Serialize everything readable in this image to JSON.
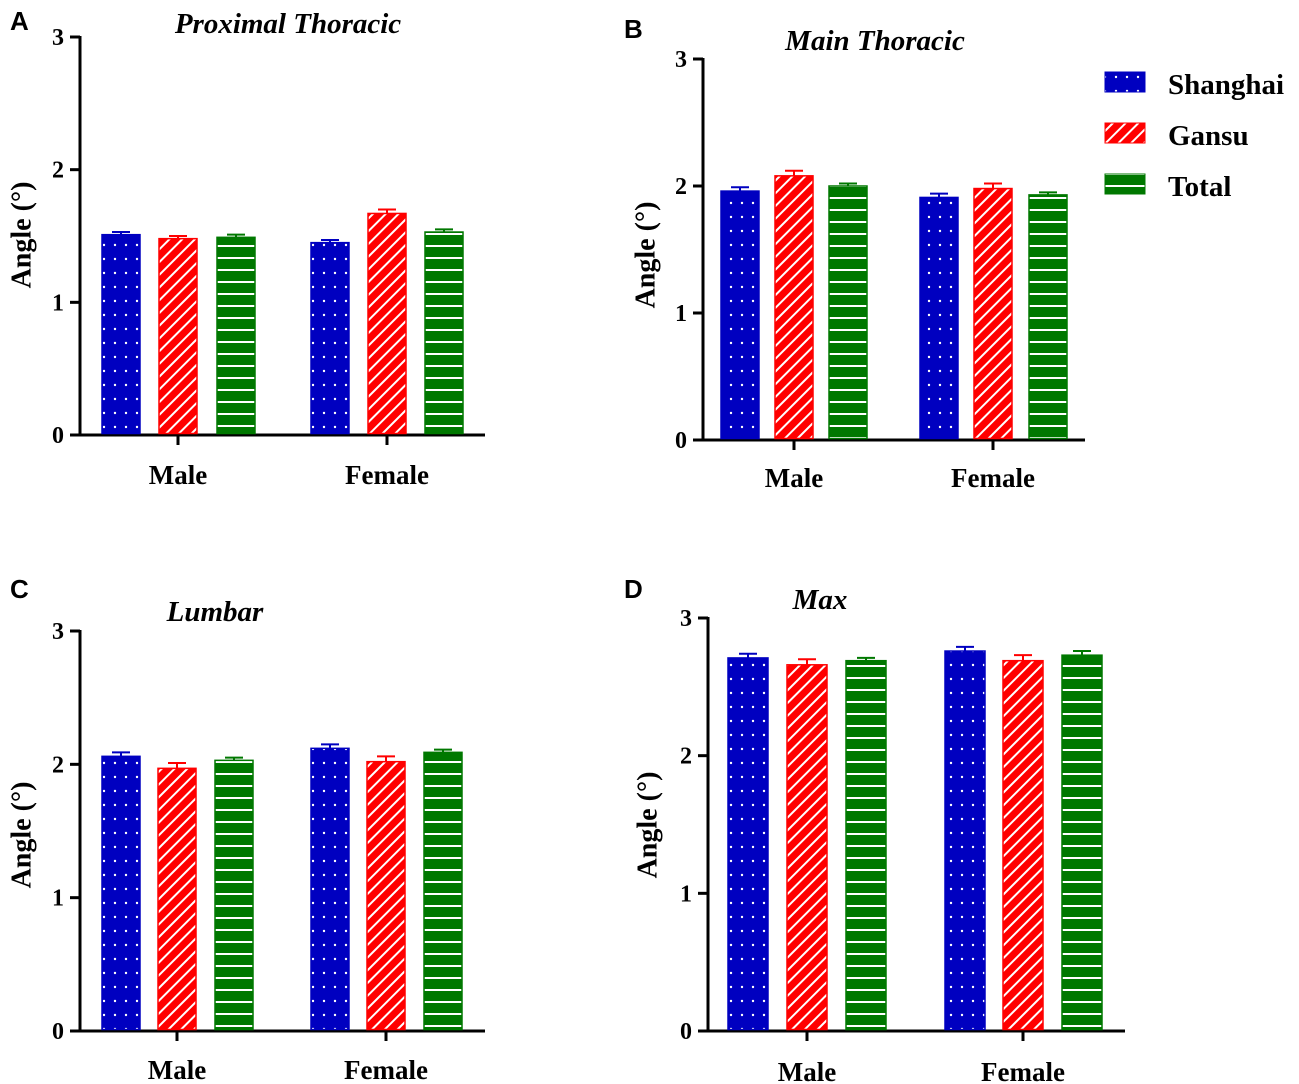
{
  "chart_data": [
    {
      "type": "bar",
      "panel": "A",
      "title": "Proximal Thoracic",
      "ylabel": "Angle (°)",
      "ylim": [
        0,
        3
      ],
      "yticks": [
        "0",
        "1",
        "2",
        "3"
      ],
      "categories": [
        "Male",
        "Female"
      ],
      "series": [
        {
          "name": "Shanghai",
          "values": [
            1.51,
            1.45
          ],
          "errors": [
            0.02,
            0.02
          ]
        },
        {
          "name": "Gansu",
          "values": [
            1.48,
            1.67
          ],
          "errors": [
            0.02,
            0.03
          ]
        },
        {
          "name": "Total",
          "values": [
            1.49,
            1.53
          ],
          "errors": [
            0.02,
            0.02
          ]
        }
      ]
    },
    {
      "type": "bar",
      "panel": "B",
      "title": "Main Thoracic",
      "ylabel": "Angle (°)",
      "ylim": [
        0,
        3
      ],
      "yticks": [
        "0",
        "1",
        "2",
        "3"
      ],
      "categories": [
        "Male",
        "Female"
      ],
      "series": [
        {
          "name": "Shanghai",
          "values": [
            1.96,
            1.91
          ],
          "errors": [
            0.03,
            0.03
          ]
        },
        {
          "name": "Gansu",
          "values": [
            2.08,
            1.98
          ],
          "errors": [
            0.04,
            0.04
          ]
        },
        {
          "name": "Total",
          "values": [
            2.0,
            1.93
          ],
          "errors": [
            0.02,
            0.02
          ]
        }
      ]
    },
    {
      "type": "bar",
      "panel": "C",
      "title": "Lumbar",
      "ylabel": "Angle (°)",
      "ylim": [
        0,
        3
      ],
      "yticks": [
        "0",
        "1",
        "2",
        "3"
      ],
      "categories": [
        "Male",
        "Female"
      ],
      "series": [
        {
          "name": "Shanghai",
          "values": [
            2.06,
            2.12
          ],
          "errors": [
            0.03,
            0.03
          ]
        },
        {
          "name": "Gansu",
          "values": [
            1.97,
            2.02
          ],
          "errors": [
            0.04,
            0.04
          ]
        },
        {
          "name": "Total",
          "values": [
            2.03,
            2.09
          ],
          "errors": [
            0.02,
            0.02
          ]
        }
      ]
    },
    {
      "type": "bar",
      "panel": "D",
      "title": "Max",
      "ylabel": "Angle (°)",
      "ylim": [
        0,
        3
      ],
      "yticks": [
        "0",
        "1",
        "2",
        "3"
      ],
      "categories": [
        "Male",
        "Female"
      ],
      "series": [
        {
          "name": "Shanghai",
          "values": [
            2.71,
            2.76
          ],
          "errors": [
            0.03,
            0.03
          ]
        },
        {
          "name": "Gansu",
          "values": [
            2.66,
            2.69
          ],
          "errors": [
            0.04,
            0.04
          ]
        },
        {
          "name": "Total",
          "values": [
            2.69,
            2.73
          ],
          "errors": [
            0.02,
            0.03
          ]
        }
      ]
    }
  ],
  "legend": {
    "placement": "top-right",
    "items": [
      {
        "label": "Shanghai",
        "color": "#0000c0"
      },
      {
        "label": "Gansu",
        "color": "#ff0000"
      },
      {
        "label": "Total",
        "color": "#007800"
      }
    ]
  }
}
